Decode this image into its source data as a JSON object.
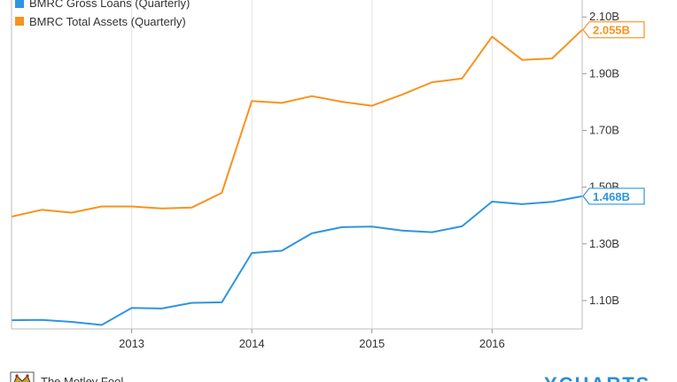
{
  "chart_data": {
    "type": "line",
    "x": [
      2012.0,
      2012.25,
      2012.5,
      2012.75,
      2013.0,
      2013.25,
      2013.5,
      2013.75,
      2014.0,
      2014.25,
      2014.5,
      2014.75,
      2015.0,
      2015.25,
      2015.5,
      2015.75,
      2016.0,
      2016.25,
      2016.5,
      2016.75
    ],
    "series": [
      {
        "name": "BMRC Gross Loans (Quarterly)",
        "color": "#2f95e0",
        "values": [
          1.031,
          1.032,
          1.025,
          1.014,
          1.074,
          1.072,
          1.092,
          1.094,
          1.268,
          1.276,
          1.337,
          1.359,
          1.361,
          1.347,
          1.341,
          1.362,
          1.449,
          1.44,
          1.448,
          1.468
        ],
        "last_value_label": "1.468B"
      },
      {
        "name": "BMRC Total Assets (Quarterly)",
        "color": "#f7931e",
        "values": [
          1.396,
          1.42,
          1.41,
          1.432,
          1.432,
          1.425,
          1.428,
          1.48,
          1.804,
          1.797,
          1.821,
          1.801,
          1.787,
          1.826,
          1.87,
          1.883,
          2.031,
          1.949,
          1.954,
          2.055
        ],
        "last_value_label": "2.055B"
      }
    ],
    "x_ticks": [
      2013,
      2014,
      2015,
      2016
    ],
    "x_tick_labels": [
      "2013",
      "2014",
      "2015",
      "2016"
    ],
    "y_ticks": [
      1.1,
      1.3,
      1.5,
      1.7,
      1.9,
      2.1
    ],
    "y_tick_labels": [
      "1.10B",
      "1.30B",
      "1.50B",
      "1.70B",
      "1.90B",
      "2.10B"
    ],
    "xlim": [
      2012.0,
      2016.75
    ],
    "ylim": [
      1.0,
      2.16
    ],
    "grid": "vertical",
    "legend": "top-left",
    "title": "",
    "xlabel": "",
    "ylabel": ""
  },
  "footer": {
    "source_text": "The Motley Fool",
    "brand_text": "YCHARTS",
    "logo_icon": "jester-hat-icon"
  }
}
